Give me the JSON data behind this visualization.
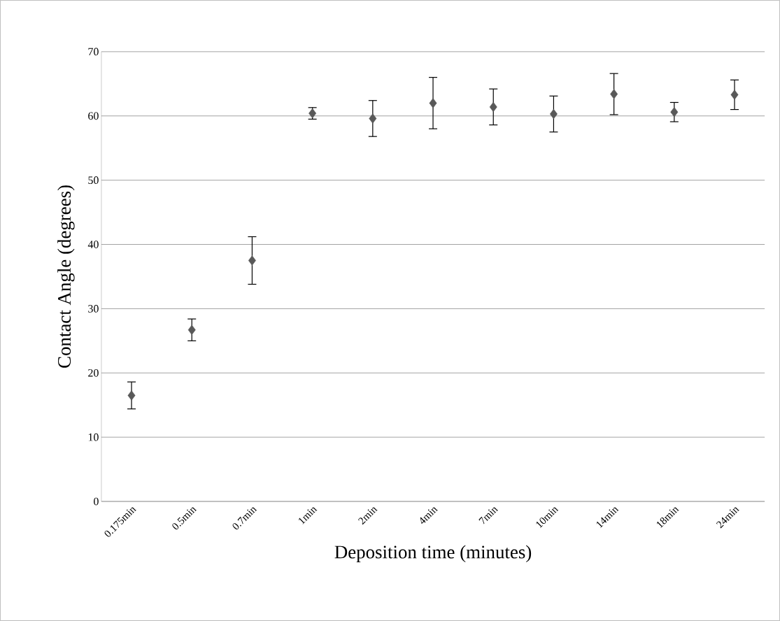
{
  "chart_data": {
    "type": "scatter",
    "xlabel": "Deposition time (minutes)",
    "ylabel": "Contact Angle (degrees)",
    "categories": [
      "0.175min",
      "0.5min",
      "0.7min",
      "1min",
      "2min",
      "4min",
      "7min",
      "10min",
      "14min",
      "18min",
      "24min"
    ],
    "series": [
      {
        "color": "#595959",
        "values": [
          16.5,
          26.7,
          37.5,
          60.4,
          59.6,
          62.0,
          61.4,
          60.3,
          63.4,
          60.6,
          63.3
        ],
        "errors": [
          2.1,
          1.7,
          3.7,
          0.9,
          2.8,
          4.0,
          2.8,
          2.8,
          3.2,
          1.5,
          2.3
        ]
      }
    ],
    "ylim": [
      0,
      70
    ],
    "yticks": [
      0,
      10,
      20,
      30,
      40,
      50,
      60,
      70
    ],
    "grid": "y",
    "marker": "diamond"
  }
}
